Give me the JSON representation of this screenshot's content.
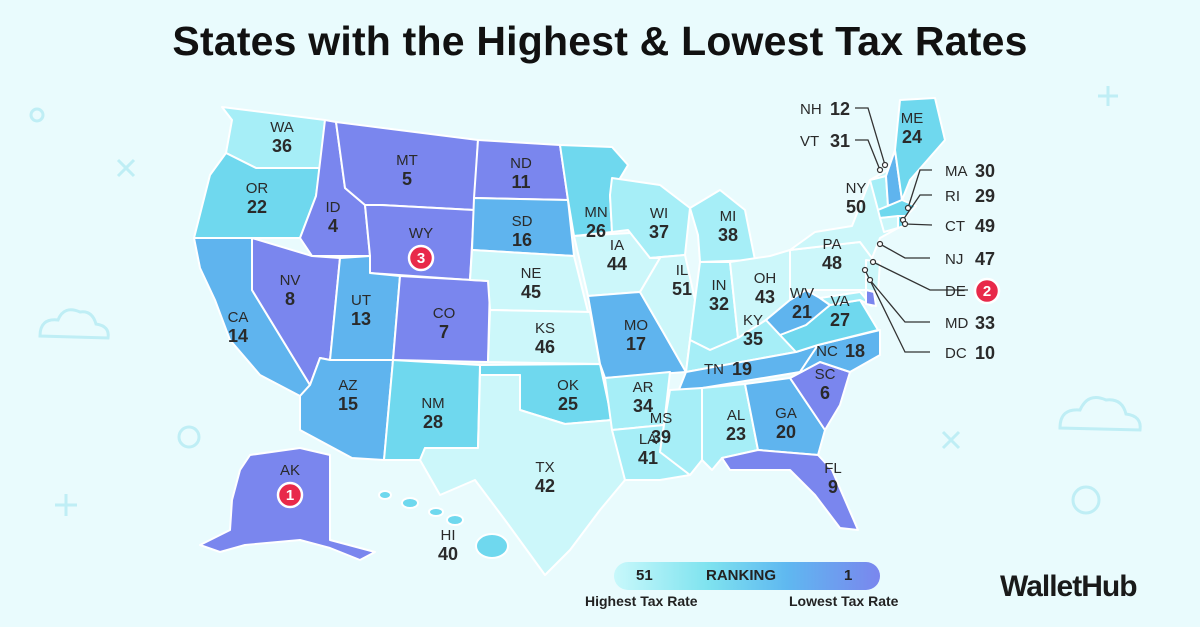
{
  "title": "States with the Highest & Lowest Tax Rates",
  "legend": {
    "left_value": "51",
    "center_label": "RANKING",
    "right_value": "1",
    "high_label": "Highest Tax Rate",
    "low_label": "Lowest Tax Rate"
  },
  "brand": "WalletHub",
  "colors": {
    "rank_1_to_10": "#7a86ee",
    "rank_11_to_20": "#5fb4ee",
    "rank_21_to_30": "#6fd8ee",
    "rank_31_to_40": "#a6eef7",
    "rank_41_to_51": "#ccf7fa",
    "highlight_badge": "#e8294a",
    "background": "#e9fbfd"
  },
  "states": [
    {
      "abbr": "AK",
      "rank": "1"
    },
    {
      "abbr": "DE",
      "rank": "2"
    },
    {
      "abbr": "WY",
      "rank": "3"
    },
    {
      "abbr": "ID",
      "rank": "4"
    },
    {
      "abbr": "MT",
      "rank": "5"
    },
    {
      "abbr": "SC",
      "rank": "6"
    },
    {
      "abbr": "CO",
      "rank": "7"
    },
    {
      "abbr": "NV",
      "rank": "8"
    },
    {
      "abbr": "FL",
      "rank": "9"
    },
    {
      "abbr": "DC",
      "rank": "10"
    },
    {
      "abbr": "ND",
      "rank": "11"
    },
    {
      "abbr": "NH",
      "rank": "12"
    },
    {
      "abbr": "UT",
      "rank": "13"
    },
    {
      "abbr": "CA",
      "rank": "14"
    },
    {
      "abbr": "AZ",
      "rank": "15"
    },
    {
      "abbr": "SD",
      "rank": "16"
    },
    {
      "abbr": "MO",
      "rank": "17"
    },
    {
      "abbr": "NC",
      "rank": "18"
    },
    {
      "abbr": "TN",
      "rank": "19"
    },
    {
      "abbr": "GA",
      "rank": "20"
    },
    {
      "abbr": "WV",
      "rank": "21"
    },
    {
      "abbr": "OR",
      "rank": "22"
    },
    {
      "abbr": "AL",
      "rank": "23"
    },
    {
      "abbr": "ME",
      "rank": "24"
    },
    {
      "abbr": "OK",
      "rank": "25"
    },
    {
      "abbr": "MN",
      "rank": "26"
    },
    {
      "abbr": "VA",
      "rank": "27"
    },
    {
      "abbr": "NM",
      "rank": "28"
    },
    {
      "abbr": "RI",
      "rank": "29"
    },
    {
      "abbr": "MA",
      "rank": "30"
    },
    {
      "abbr": "VT",
      "rank": "31"
    },
    {
      "abbr": "IN",
      "rank": "32"
    },
    {
      "abbr": "MD",
      "rank": "33"
    },
    {
      "abbr": "AR",
      "rank": "34"
    },
    {
      "abbr": "KY",
      "rank": "35"
    },
    {
      "abbr": "WA",
      "rank": "36"
    },
    {
      "abbr": "WI",
      "rank": "37"
    },
    {
      "abbr": "MI",
      "rank": "38"
    },
    {
      "abbr": "MS",
      "rank": "39"
    },
    {
      "abbr": "HI",
      "rank": "40"
    },
    {
      "abbr": "LA",
      "rank": "41"
    },
    {
      "abbr": "TX",
      "rank": "42"
    },
    {
      "abbr": "OH",
      "rank": "43"
    },
    {
      "abbr": "IA",
      "rank": "44"
    },
    {
      "abbr": "NE",
      "rank": "45"
    },
    {
      "abbr": "KS",
      "rank": "46"
    },
    {
      "abbr": "NJ",
      "rank": "47"
    },
    {
      "abbr": "PA",
      "rank": "48"
    },
    {
      "abbr": "CT",
      "rank": "49"
    },
    {
      "abbr": "NY",
      "rank": "50"
    },
    {
      "abbr": "IL",
      "rank": "51"
    }
  ]
}
